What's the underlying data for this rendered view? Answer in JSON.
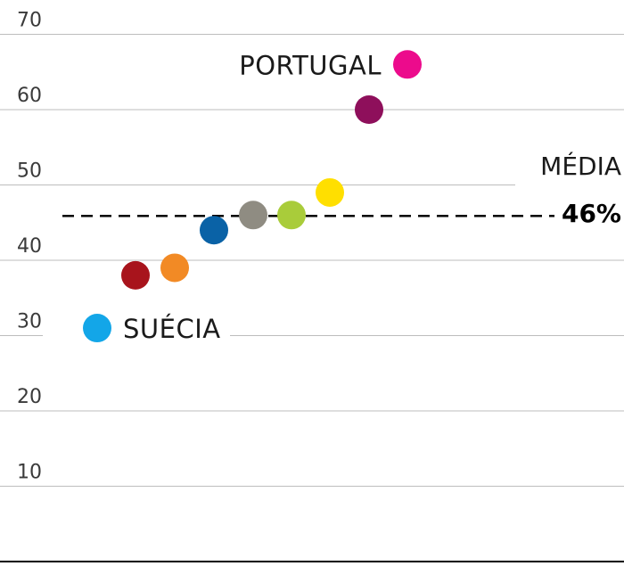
{
  "chart_data": {
    "type": "scatter",
    "ylim": [
      0,
      70
    ],
    "y_ticks": [
      "10",
      "20",
      "30",
      "40",
      "50",
      "60",
      "70"
    ],
    "grid": true,
    "points": [
      {
        "y": 31,
        "color": "#13a6e8",
        "label": "SUÉCIA"
      },
      {
        "y": 38,
        "color": "#a8141c",
        "label": ""
      },
      {
        "y": 39,
        "color": "#f28a25",
        "label": ""
      },
      {
        "y": 44,
        "color": "#0a62a6",
        "label": ""
      },
      {
        "y": 46,
        "color": "#8f8c82",
        "label": ""
      },
      {
        "y": 46,
        "color": "#a9cc3a",
        "label": ""
      },
      {
        "y": 49,
        "color": "#ffdf00",
        "label": ""
      },
      {
        "y": 60,
        "color": "#8e0f5b",
        "label": ""
      },
      {
        "y": 66,
        "color": "#ec0b8c",
        "label": "PORTUGAL"
      }
    ],
    "average": {
      "value": 46,
      "label": "MÉDIA",
      "value_label": "46%"
    }
  }
}
